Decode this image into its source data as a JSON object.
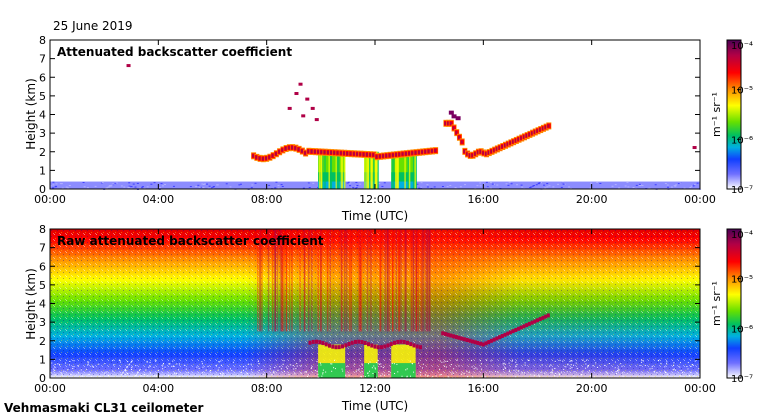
{
  "date": "25 June 2019",
  "instrument": "Vehmasmaki CL31 ceilometer",
  "colorbar": {
    "scale": "log",
    "ticks": [
      "10⁻⁴",
      "10⁻⁵",
      "10⁻⁶",
      "10⁻⁷"
    ],
    "tick_values": [
      0.0001,
      1e-05,
      1e-06,
      1e-07
    ],
    "unit": "m⁻¹ sr⁻¹",
    "colors": [
      "#4b0055",
      "#b00046",
      "#ff0000",
      "#ff8c00",
      "#ffff00",
      "#66e000",
      "#00c060",
      "#00b0e0",
      "#1040ff",
      "#7070ff",
      "#ffffff"
    ]
  },
  "chart_data": [
    {
      "type": "heatmap",
      "panel": "top",
      "title": "Attenuated backscatter coefficient",
      "xlabel": "Time (UTC)",
      "ylabel": "Height (km)",
      "xlim": [
        "00:00",
        "00:00"
      ],
      "ylim": [
        0,
        8
      ],
      "xticks": [
        "00:00",
        "04:00",
        "08:00",
        "12:00",
        "16:00",
        "20:00",
        "00:00"
      ],
      "yticks": [
        "0",
        "1",
        "2",
        "3",
        "4",
        "5",
        "6",
        "7",
        "8"
      ],
      "colorbar_range": [
        1e-07,
        0.0001
      ],
      "features": [
        {
          "type": "boundary layer",
          "from_h": 0,
          "to_h": 24,
          "top_km": 0.4
        },
        {
          "type": "cloud layer",
          "from_h": 7.5,
          "to_h": 14.3,
          "base_km": 1.5,
          "top_km": 2.3
        },
        {
          "type": "cloud layer",
          "from_h": 14.6,
          "to_h": 18.5,
          "base_km": 1.8,
          "top_km": 3.5
        },
        {
          "type": "elevated cloud",
          "from_h": 8.8,
          "to_h": 9.9,
          "base_km": 3.5,
          "top_km": 5.6
        },
        {
          "type": "precipitation",
          "from_h": 9.7,
          "to_h": 13.7,
          "top_km": 2.0
        }
      ]
    },
    {
      "type": "heatmap",
      "panel": "bottom",
      "title": "Raw attenuated backscatter coefficient",
      "xlabel": "Time (UTC)",
      "ylabel": "Height (km)",
      "xlim": [
        "00:00",
        "00:00"
      ],
      "ylim": [
        0,
        8
      ],
      "xticks": [
        "00:00",
        "04:00",
        "08:00",
        "12:00",
        "16:00",
        "20:00",
        "00:00"
      ],
      "yticks": [
        "0",
        "1",
        "2",
        "3",
        "4",
        "5",
        "6",
        "7",
        "8"
      ],
      "colorbar_range": [
        1e-07,
        0.0001
      ],
      "features": [
        {
          "type": "noise",
          "from_h": 0,
          "to_h": 24,
          "note": "signal increases with height"
        },
        {
          "type": "cloud layer",
          "from_h": 9.6,
          "to_h": 13.7,
          "base_km": 1.5,
          "top_km": 2.0
        },
        {
          "type": "cloud layer",
          "from_h": 14.5,
          "to_h": 18.5,
          "base_km": 1.8,
          "top_km": 3.5
        }
      ]
    }
  ]
}
